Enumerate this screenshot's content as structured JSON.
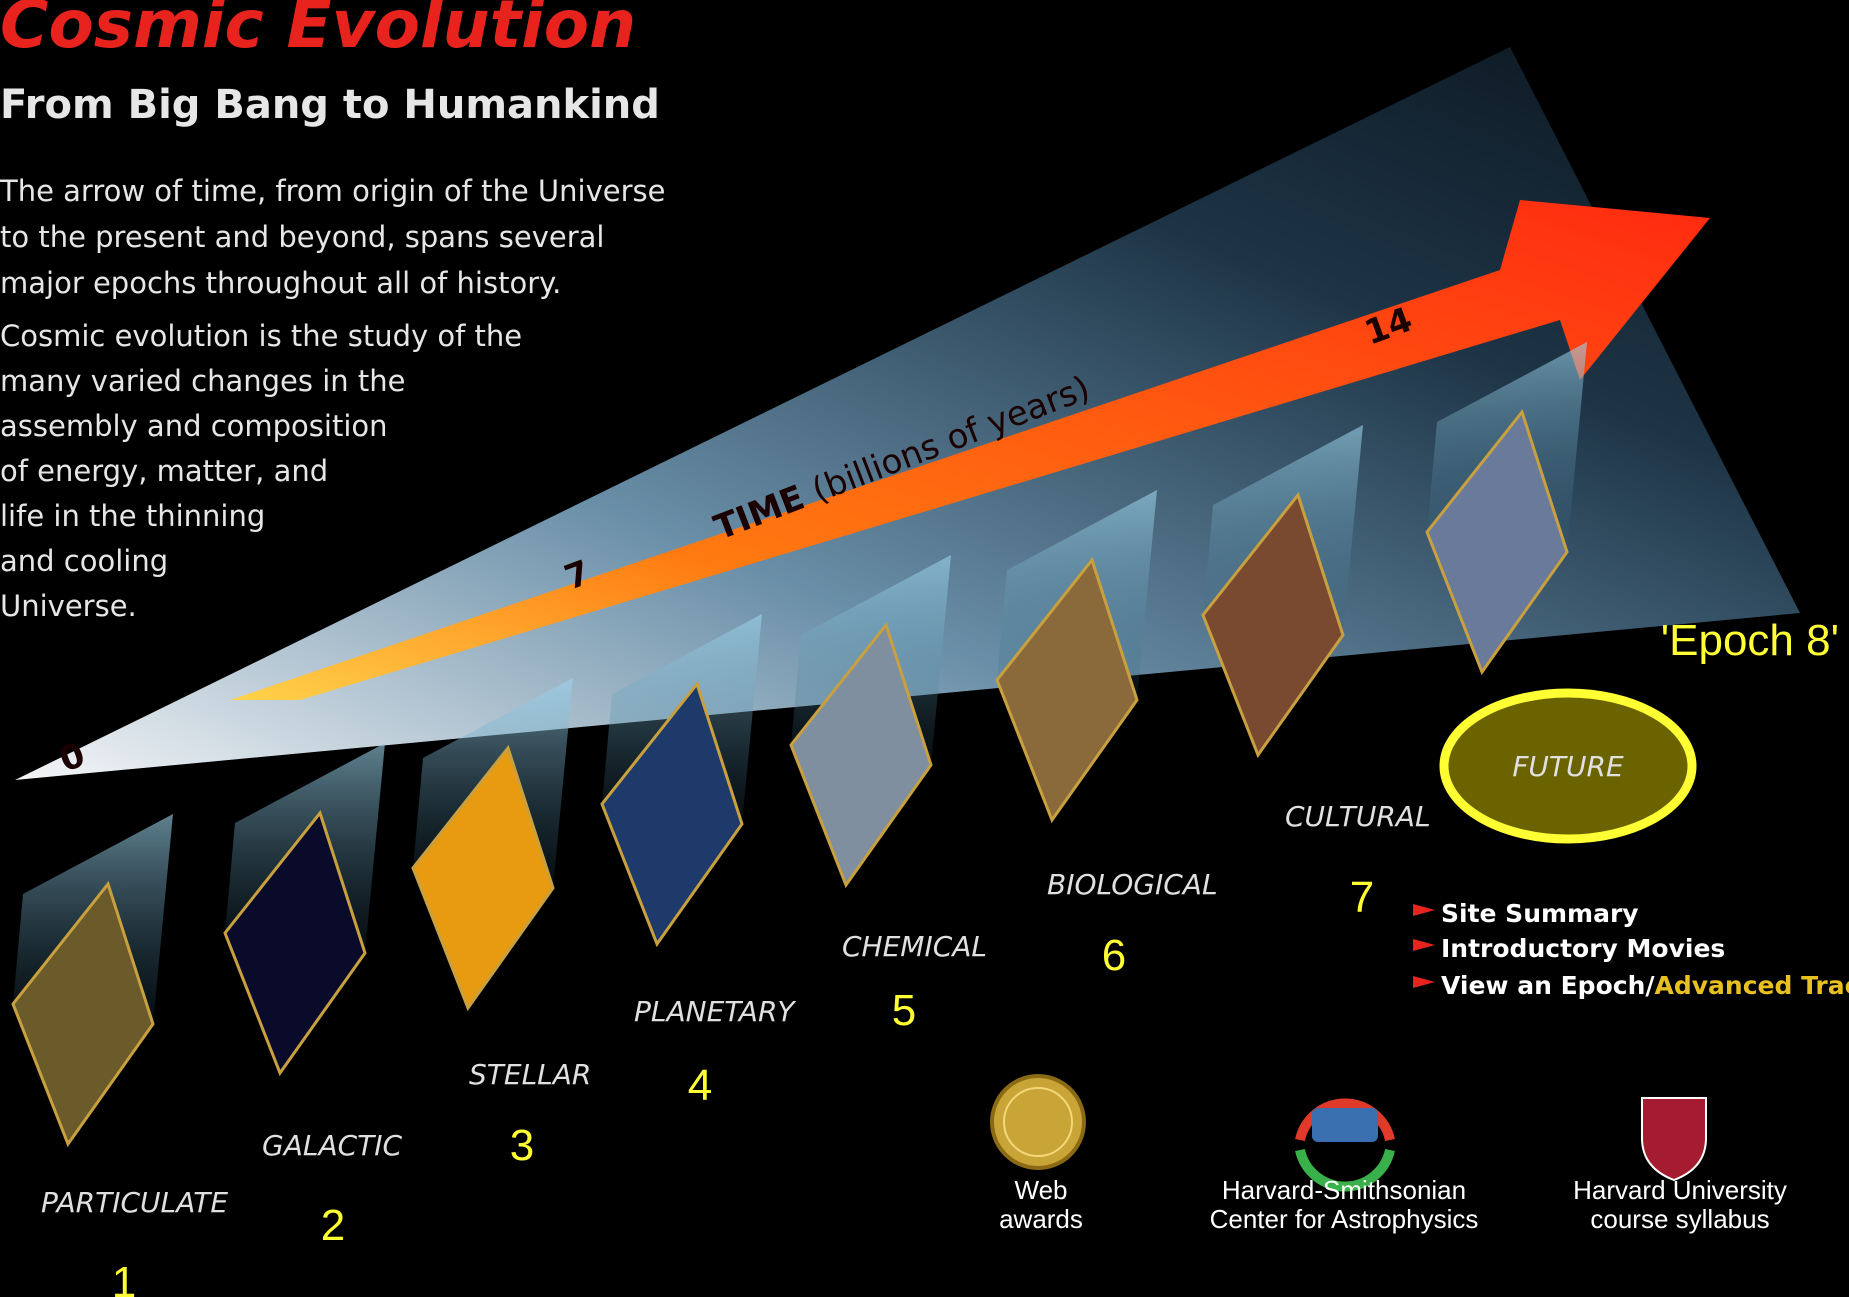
{
  "header": {
    "title": "Cosmic Evolution",
    "subtitle": "From Big Bang to Humankind"
  },
  "intro": {
    "paragraph1": [
      "The arrow of time, from origin of the Universe",
      "to the present and beyond, spans several",
      "major epochs throughout all of history."
    ],
    "paragraph2": [
      "Cosmic evolution is the study of the",
      "many varied changes in the",
      "assembly and composition",
      "of energy, matter, and",
      "life in the thinning",
      "and cooling",
      "Universe."
    ]
  },
  "arrow": {
    "label": "TIME",
    "unit": "(billions of years)",
    "ticks": [
      "0",
      "7",
      "14"
    ]
  },
  "epochs": [
    {
      "name": "PARTICULATE",
      "number": "1"
    },
    {
      "name": "GALACTIC",
      "number": "2"
    },
    {
      "name": "STELLAR",
      "number": "3"
    },
    {
      "name": "PLANETARY",
      "number": "4"
    },
    {
      "name": "CHEMICAL",
      "number": "5"
    },
    {
      "name": "BIOLOGICAL",
      "number": "6"
    },
    {
      "name": "CULTURAL",
      "number": "7"
    },
    {
      "name": "FUTURE",
      "number": "'Epoch 8'"
    }
  ],
  "menu": {
    "items": [
      "Site Summary",
      "Introductory Movies"
    ],
    "last_item": {
      "text": "View an Epoch/",
      "highlight": "Advanced Track"
    }
  },
  "logos": [
    {
      "caption": [
        "Web",
        "awards"
      ]
    },
    {
      "caption": [
        "Harvard-Smithsonian",
        "Center for Astrophysics"
      ]
    },
    {
      "caption": [
        "Harvard University",
        "course syllabus"
      ]
    }
  ]
}
